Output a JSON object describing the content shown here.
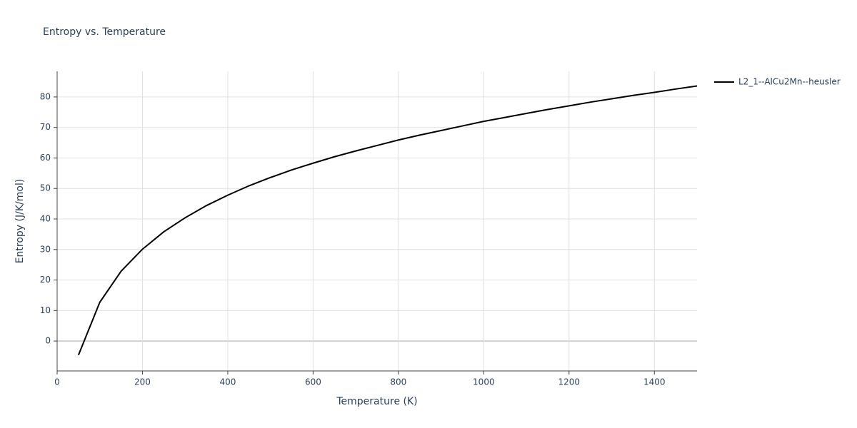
{
  "chart_data": {
    "type": "line",
    "title": "Entropy vs. Temperature",
    "x_label": "Temperature (K)",
    "y_label": "Entropy (J/K/mol)",
    "x": [
      50,
      100,
      150,
      200,
      250,
      300,
      350,
      400,
      450,
      500,
      550,
      600,
      650,
      700,
      750,
      800,
      850,
      900,
      950,
      1000,
      1050,
      1100,
      1150,
      1200,
      1250,
      1300,
      1350,
      1400,
      1450,
      1500
    ],
    "series": [
      {
        "name": "L2_1--AlCu2Mn--heusler",
        "color": "#000000",
        "values": [
          -4.6,
          12.7,
          22.9,
          30.1,
          35.8,
          40.4,
          44.4,
          47.8,
          50.9,
          53.6,
          56.1,
          58.3,
          60.4,
          62.3,
          64.1,
          65.9,
          67.5,
          69.0,
          70.5,
          72.0,
          73.3,
          74.6,
          75.9,
          77.1,
          78.3,
          79.4,
          80.5,
          81.5,
          82.6,
          83.6
        ]
      }
    ],
    "xlim": [
      0,
      1500
    ],
    "xticks": [
      0,
      200,
      400,
      600,
      800,
      1000,
      1200,
      1400
    ],
    "ylim": [
      -9.8,
      88.4
    ],
    "yticks": [
      0,
      10,
      20,
      30,
      40,
      50,
      60,
      70,
      80
    ],
    "grid": true,
    "legend": "right"
  }
}
